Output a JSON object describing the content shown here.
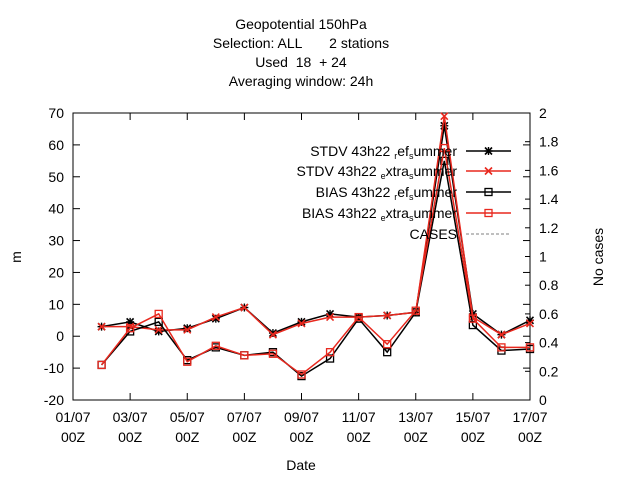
{
  "chart_data": {
    "type": "line",
    "title_lines": [
      "Geopotential 150hPa",
      "Selection: ALL       2 stations",
      "Used  18  + 24",
      "Averaging window: 24h"
    ],
    "xlabel": "Date",
    "ylabel": "m",
    "y2label": "No cases",
    "xlim": [
      0,
      16
    ],
    "ylim": [
      -20,
      70
    ],
    "y2lim": [
      0,
      2
    ],
    "x_ticks": [
      {
        "x": 0,
        "line1": "01/07",
        "line2": "00Z"
      },
      {
        "x": 2,
        "line1": "03/07",
        "line2": "00Z"
      },
      {
        "x": 4,
        "line1": "05/07",
        "line2": "00Z"
      },
      {
        "x": 6,
        "line1": "07/07",
        "line2": "00Z"
      },
      {
        "x": 8,
        "line1": "09/07",
        "line2": "00Z"
      },
      {
        "x": 10,
        "line1": "11/07",
        "line2": "00Z"
      },
      {
        "x": 12,
        "line1": "13/07",
        "line2": "00Z"
      },
      {
        "x": 14,
        "line1": "15/07",
        "line2": "00Z"
      },
      {
        "x": 16,
        "line1": "17/07",
        "line2": "00Z"
      }
    ],
    "y_ticks": [
      "-20",
      "-10",
      "0",
      "10",
      "20",
      "30",
      "40",
      "50",
      "60",
      "70"
    ],
    "y2_ticks": [
      "0",
      "0.2",
      "0.4",
      "0.6",
      "0.8",
      "1",
      "1.2",
      "1.4",
      "1.6",
      "1.8",
      "2"
    ],
    "grid": false,
    "legend_position": "top-right",
    "x": [
      1,
      2,
      3,
      4,
      5,
      6,
      7,
      8,
      9,
      10,
      11,
      12,
      13,
      14,
      15,
      16
    ],
    "series": [
      {
        "legend_main": "STDV 43h22",
        "legend_parts": [
          [
            "r",
            "sub"
          ],
          [
            "ef",
            ""
          ],
          [
            "s",
            "sub"
          ],
          [
            "ummer",
            ""
          ]
        ],
        "color": "#000000",
        "marker": "star",
        "values": [
          3,
          4.5,
          1.5,
          2.5,
          5.5,
          9,
          1,
          4.5,
          7,
          6,
          6.5,
          7.5,
          66,
          7,
          0.5,
          5
        ]
      },
      {
        "legend_main": "STDV 43h22",
        "legend_parts": [
          [
            "e",
            "sub"
          ],
          [
            "xtra",
            ""
          ],
          [
            "s",
            "sub"
          ],
          [
            "ummer",
            ""
          ]
        ],
        "color": "#e8281e",
        "marker": "x",
        "values": [
          3,
          3,
          2,
          2,
          6,
          9,
          0.5,
          4,
          6,
          6,
          6.5,
          7.5,
          69,
          6,
          0.5,
          4
        ]
      },
      {
        "legend_main": "BIAS 43h22",
        "legend_parts": [
          [
            "r",
            "sub"
          ],
          [
            "ef",
            ""
          ],
          [
            "s",
            "sub"
          ],
          [
            "ummer",
            ""
          ]
        ],
        "color": "#000000",
        "marker": "square",
        "values": [
          -9,
          1.5,
          4.5,
          -7.5,
          -3.5,
          -6,
          -5,
          -12.5,
          -7,
          5.5,
          -5,
          7.5,
          55,
          3.5,
          -4.5,
          -4
        ]
      },
      {
        "legend_main": "BIAS 43h22",
        "legend_parts": [
          [
            "e",
            "sub"
          ],
          [
            "xtra",
            ""
          ],
          [
            "s",
            "sub"
          ],
          [
            "ummer",
            ""
          ]
        ],
        "color": "#e8281e",
        "marker": "square",
        "values": [
          -9,
          2.5,
          7,
          -8,
          -3,
          -6,
          -5.5,
          -12,
          -5,
          6,
          -2.5,
          8,
          59,
          5.5,
          -3.5,
          -3.5
        ]
      }
    ],
    "cases": {
      "legend": "CASES",
      "color": "#999999",
      "dash": "3,2",
      "values": []
    }
  }
}
